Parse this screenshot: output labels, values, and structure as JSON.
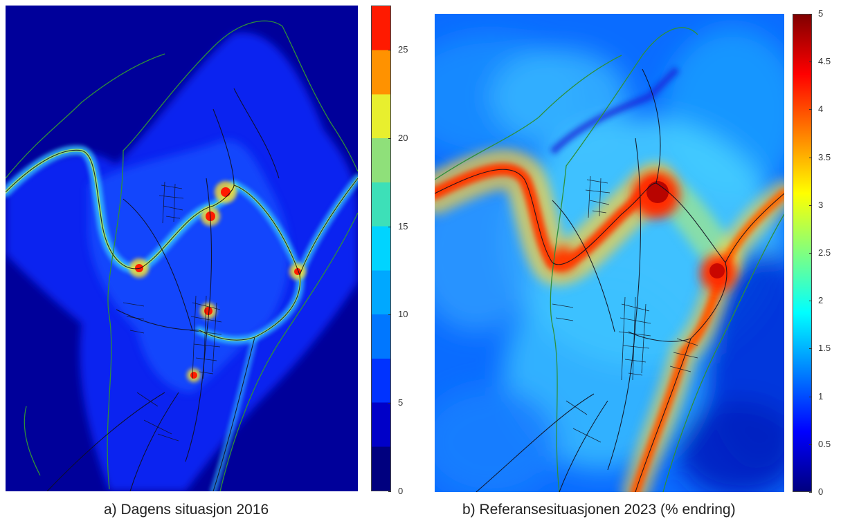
{
  "panel_a": {
    "caption": "a) Dagens situasjon 2016",
    "colorbar_ticks": [
      "0",
      "5",
      "10",
      "15",
      "20",
      "25"
    ],
    "colorbar_range": [
      0,
      27.5
    ],
    "colorbar_colors": [
      "#00007f",
      "#0000c8",
      "#0033ff",
      "#0077ff",
      "#00a8ff",
      "#00d4ff",
      "#3de0b8",
      "#8fe07a",
      "#e8ef2e",
      "#ff9200",
      "#ff1a00"
    ]
  },
  "panel_b": {
    "caption": "b) Referansesituasjonen 2023 (% endring)",
    "colorbar_ticks": [
      "0",
      "0.5",
      "1",
      "1.5",
      "2",
      "2.5",
      "3",
      "3.5",
      "4",
      "4.5",
      "5"
    ],
    "colorbar_range": [
      0,
      5
    ],
    "colorbar_colors": [
      "#00007f",
      "#0000ff",
      "#0080ff",
      "#00ffff",
      "#80ff80",
      "#ffff00",
      "#ff8000",
      "#ff0000",
      "#800000"
    ]
  }
}
